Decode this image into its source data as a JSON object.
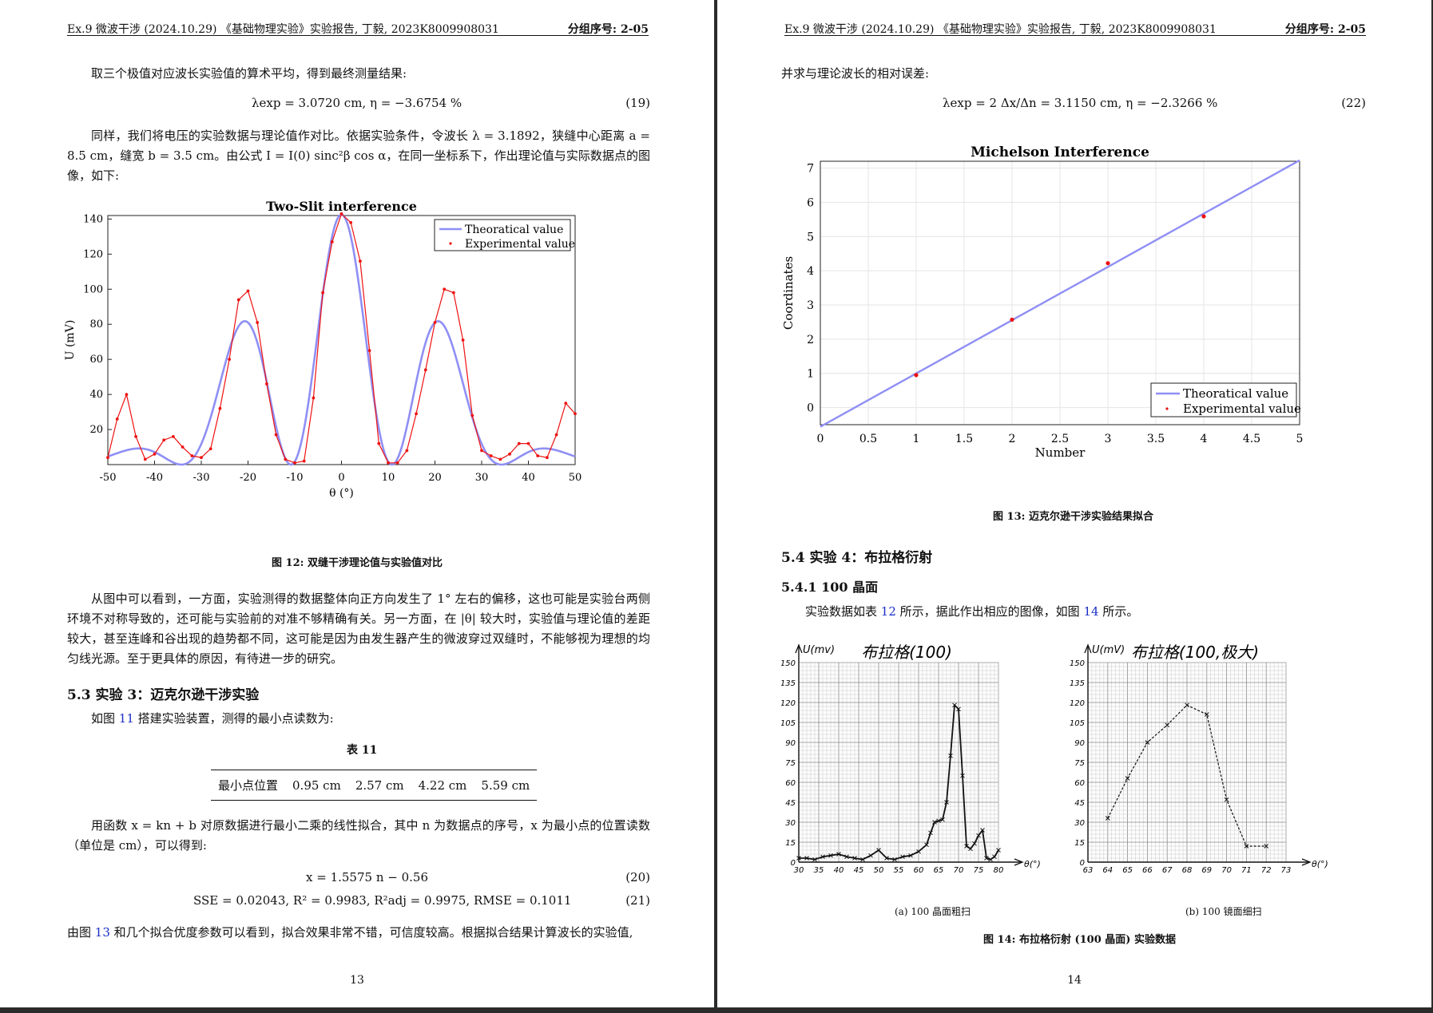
{
  "header": {
    "left": "Ex.9 微波干涉 (2024.10.29)  《基础物理实验》实验报告, 丁毅, 2023K8009908031",
    "right": "分组序号: 2-05"
  },
  "page13": {
    "intro": "取三个极值对应波长实验值的算术平均，得到最终测量结果:",
    "eq19": "λexp = 3.0720 cm,    η = −3.6754 %",
    "eq19_num": "(19)",
    "p_compare": "同样，我们将电压的实验数据与理论值作对比。依据实验条件，令波长 λ = 3.1892，狭缝中心距离 a = 8.5 cm，缝宽 b = 3.5 cm。由公式 I = I(0) sinc²β cos α，在同一坐标系下，作出理论值与实际数据点的图像，如下:",
    "fig12_caption": "图 12: 双缝干涉理论值与实验值对比",
    "p_analysis": "从图中可以看到，一方面，实验测得的数据整体向正方向发生了 1° 左右的偏移，这也可能是实验台两侧环境不对称导致的，还可能与实验前的对准不够精确有关。另一方面，在 |θ| 较大时，实验值与理论值的差距较大，甚至连峰和谷出现的趋势都不同，这可能是因为由发生器产生的微波穿过双缝时，不能够视为理想的均匀线光源。至于更具体的原因，有待进一步的研究。",
    "sec53": "5.3  实验 3：迈克尔逊干涉实验",
    "p53_a": "如图",
    "p53_link": "11",
    "p53_b": "搭建实验装置，测得的最小点读数为:",
    "table_title": "表 11",
    "table_cells": [
      "最小点位置",
      "0.95 cm",
      "2.57 cm",
      "4.22 cm",
      "5.59 cm"
    ],
    "p_fit": "用函数 x = kn + b 对原数据进行最小二乘的线性拟合，其中 n 为数据点的序号，x 为最小点的位置读数（单位是 cm），可以得到:",
    "eq20": "x = 1.5575 n − 0.56",
    "eq20_num": "(20)",
    "eq21": "SSE = 0.02043,  R² = 0.9983,  R²adj = 0.9975,  RMSE = 0.1011",
    "eq21_num": "(21)",
    "p_end_a": "由图",
    "p_end_link": "13",
    "p_end_b": "和几个拟合优度参数可以看到，拟合效果非常不错，可信度较高。根据拟合结果计算波长的实验值,",
    "page_number": "13"
  },
  "page14": {
    "intro": "并求与理论波长的相对误差:",
    "eq22": "λexp = 2 Δx/Δn = 3.1150 cm,    η = −2.3266 %",
    "eq22_num": "(22)",
    "fig13_caption": "图 13: 迈克尔逊干涉实验结果拟合",
    "sec54": "5.4  实验 4：布拉格衍射",
    "sec541": "5.4.1    100 晶面",
    "p_a": "实验数据如表",
    "p_link1": "12",
    "p_b": "所示，据此作出相应的图像，如图",
    "p_link2": "14",
    "p_c": "所示。",
    "sketch_a": {
      "title": "布拉格(100)",
      "ylabel": "U(mv)",
      "xlabel": "θ(°)",
      "yticks": [
        "0",
        "15",
        "30",
        "45",
        "60",
        "75",
        "90",
        "105",
        "120",
        "135",
        "150"
      ],
      "xticks": [
        "30",
        "35",
        "40",
        "45",
        "50",
        "55",
        "60",
        "65",
        "70",
        "75",
        "80"
      ]
    },
    "sketch_b": {
      "title": "布拉格(100,极大)",
      "ylabel": "U(mV)",
      "xlabel": "θ(°)",
      "yticks": [
        "0",
        "15",
        "30",
        "45",
        "60",
        "75",
        "90",
        "105",
        "120",
        "135",
        "150"
      ],
      "xticks": [
        "63",
        "64",
        "65",
        "66",
        "67",
        "68",
        "69",
        "70",
        "71",
        "72",
        "73"
      ]
    },
    "sub_a": "(a) 100 晶面粗扫",
    "sub_b": "(b) 100 镜面细扫",
    "fig14_caption": "图 14: 布拉格衍射 (100 晶面) 实验数据",
    "page_number": "14"
  },
  "chart_data": [
    {
      "type": "line",
      "title": "Two-Slit interference",
      "xlabel": "θ (°)",
      "ylabel": "U (mV)",
      "xlim": [
        -50,
        50
      ],
      "ylim": [
        0,
        142
      ],
      "xticks": [
        -50,
        -40,
        -30,
        -20,
        -10,
        0,
        10,
        20,
        30,
        40,
        50
      ],
      "yticks": [
        20,
        40,
        60,
        80,
        100,
        120,
        140
      ],
      "legend": "top-right",
      "series": [
        {
          "name": "Theoratical value",
          "color": "#8f8ff5",
          "function": "theory"
        },
        {
          "name": "Experimental value",
          "color": "#ee1111",
          "x": [
            -50,
            -48,
            -46,
            -44,
            -42,
            -40,
            -38,
            -36,
            -34,
            -32,
            -30,
            -28,
            -26,
            -24,
            -22,
            -20,
            -18,
            -16,
            -14,
            -12,
            -10,
            -8,
            -6,
            -4,
            -2,
            0,
            2,
            4,
            6,
            8,
            10,
            12,
            14,
            16,
            18,
            20,
            22,
            24,
            26,
            28,
            30,
            32,
            34,
            36,
            38,
            40,
            42,
            44,
            46,
            48,
            50
          ],
          "y": [
            4,
            26,
            40,
            16,
            3,
            6,
            14,
            16,
            10,
            5,
            4,
            9,
            32,
            60,
            94,
            99,
            81,
            46,
            17,
            3,
            1,
            2,
            38,
            98,
            127,
            143,
            138,
            116,
            65,
            12,
            1,
            1,
            8,
            29,
            54,
            81,
            100,
            98,
            71,
            28,
            8,
            5,
            3,
            6,
            12,
            12,
            5,
            4,
            17,
            35,
            29
          ]
        }
      ]
    },
    {
      "type": "line",
      "title": "Michelson Interference",
      "xlabel": "Number",
      "ylabel": "Coordinates",
      "xlim": [
        0,
        5
      ],
      "ylim": [
        -0.5,
        7.2
      ],
      "xticks": [
        0,
        0.5,
        1,
        1.5,
        2,
        2.5,
        3,
        3.5,
        4,
        4.5,
        5
      ],
      "yticks": [
        0,
        1,
        2,
        3,
        4,
        5,
        6,
        7
      ],
      "legend": "bottom-right",
      "series": [
        {
          "name": "Theoratical value",
          "color": "#8f8ff5",
          "slope": 1.5575,
          "intercept": -0.56
        },
        {
          "name": "Experimental value",
          "color": "#ee1111",
          "x": [
            1,
            2,
            3,
            4
          ],
          "y": [
            0.95,
            2.57,
            4.22,
            5.59
          ]
        }
      ]
    },
    {
      "type": "line",
      "title": "布拉格(100)",
      "xlabel": "θ(°)",
      "ylabel": "U(mv)",
      "xlim": [
        30,
        80
      ],
      "ylim": [
        0,
        150
      ],
      "series": [
        {
          "name": "",
          "x": [
            30,
            32,
            34,
            36,
            38,
            40,
            42,
            44,
            46,
            48,
            50,
            52,
            54,
            56,
            58,
            60,
            62,
            63,
            64,
            65,
            66,
            67,
            68,
            69,
            70,
            71,
            72,
            73,
            74,
            75,
            76,
            77,
            78,
            79,
            80
          ],
          "y": [
            3,
            3,
            2,
            4,
            5,
            6,
            4,
            3,
            2,
            5,
            9,
            3,
            2,
            4,
            5,
            8,
            13,
            22,
            30,
            31,
            32,
            45,
            80,
            118,
            115,
            65,
            12,
            10,
            14,
            20,
            24,
            3,
            2,
            4,
            9
          ]
        }
      ]
    },
    {
      "type": "line",
      "title": "布拉格(100,极大)",
      "xlabel": "θ(°)",
      "ylabel": "U(mV)",
      "xlim": [
        63,
        73
      ],
      "ylim": [
        0,
        150
      ],
      "series": [
        {
          "name": "",
          "x": [
            64,
            65,
            66,
            67,
            68,
            69,
            70,
            71,
            72
          ],
          "y": [
            33,
            63,
            90,
            103,
            118,
            111,
            47,
            12,
            12
          ]
        }
      ]
    }
  ]
}
